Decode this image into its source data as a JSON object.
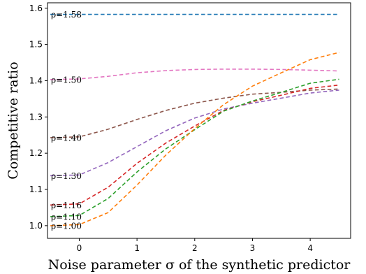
{
  "chart_data": {
    "type": "line",
    "xlabel": "Noise parameter σ of the synthetic predictor",
    "ylabel": "Competitive ratio",
    "xlim": [
      -0.55,
      4.7
    ],
    "ylim": [
      0.965,
      1.615
    ],
    "x_ticks": [
      0,
      1,
      2,
      3,
      4
    ],
    "y_ticks": [
      1.0,
      1.1,
      1.2,
      1.3,
      1.4,
      1.5,
      1.6
    ],
    "y_tick_labels": [
      "1.0",
      "1.1",
      "1.2",
      "1.3",
      "1.4",
      "1.5",
      "1.6"
    ],
    "grid": false,
    "legend": "none",
    "x": [
      -0.5,
      0.0,
      0.5,
      1.0,
      1.5,
      2.0,
      2.5,
      3.0,
      3.5,
      4.0,
      4.5
    ],
    "series": [
      {
        "name": "ρ=1.58",
        "color": "#1f77b4",
        "values": [
          1.583,
          1.583,
          1.583,
          1.583,
          1.583,
          1.583,
          1.583,
          1.583,
          1.583,
          1.583,
          1.583
        ]
      },
      {
        "name": "ρ=1.50",
        "color": "#e377c2",
        "values": [
          1.403,
          1.405,
          1.412,
          1.422,
          1.428,
          1.431,
          1.432,
          1.432,
          1.431,
          1.429,
          1.427
        ]
      },
      {
        "name": "ρ=1.40",
        "color": "#8c564b",
        "values": [
          1.243,
          1.245,
          1.266,
          1.293,
          1.318,
          1.338,
          1.352,
          1.363,
          1.368,
          1.374,
          1.377
        ]
      },
      {
        "name": "ρ=1.30",
        "color": "#9467bd",
        "values": [
          1.138,
          1.14,
          1.174,
          1.218,
          1.262,
          1.297,
          1.322,
          1.338,
          1.352,
          1.366,
          1.374
        ]
      },
      {
        "name": "ρ=1.16",
        "color": "#d62728",
        "values": [
          1.057,
          1.06,
          1.106,
          1.172,
          1.228,
          1.275,
          1.318,
          1.342,
          1.36,
          1.379,
          1.388
        ]
      },
      {
        "name": "ρ=1.10",
        "color": "#2ca02c",
        "values": [
          1.025,
          1.028,
          1.075,
          1.148,
          1.212,
          1.265,
          1.316,
          1.344,
          1.368,
          1.393,
          1.404
        ]
      },
      {
        "name": "ρ=1.00",
        "color": "#ff7f0e",
        "values": [
          1.0,
          1.003,
          1.036,
          1.112,
          1.195,
          1.268,
          1.334,
          1.385,
          1.422,
          1.458,
          1.478
        ]
      }
    ]
  }
}
